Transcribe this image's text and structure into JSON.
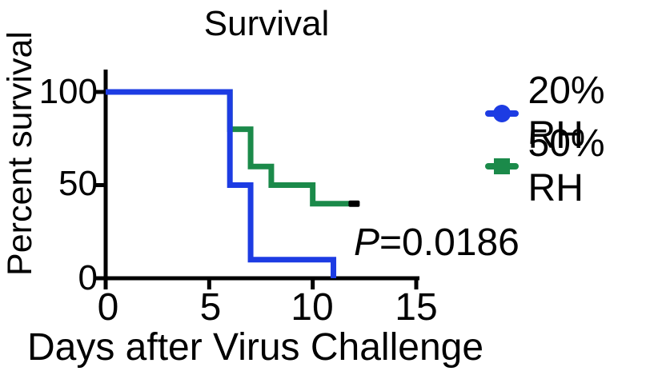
{
  "p_annotation": {
    "italic": "P",
    "rest": "=0.0186"
  },
  "chart_data": {
    "type": "line",
    "subtype": "kaplan_meier_survival_step",
    "title": "Survival",
    "xlabel": "Days after Virus Challenge",
    "ylabel": "Percent survival",
    "xlim": [
      0,
      15
    ],
    "ylim": [
      0,
      100
    ],
    "x_ticks": [
      0,
      5,
      10,
      15
    ],
    "y_ticks": [
      0,
      50,
      100
    ],
    "grid": false,
    "legend_position": "right-of-plot",
    "annotation": "P=0.0186",
    "colors": {
      "axis": "#000000",
      "text": "#000000",
      "background": "#ffffff"
    },
    "series": [
      {
        "name": "20% RH",
        "color": "#1d3ce3",
        "marker": "circle",
        "points": [
          [
            0,
            100
          ],
          [
            6,
            100
          ],
          [
            6,
            50
          ],
          [
            7,
            50
          ],
          [
            7,
            10
          ],
          [
            11,
            10
          ],
          [
            11,
            0
          ]
        ]
      },
      {
        "name": "50% RH",
        "color": "#1b8a4a",
        "marker": "square",
        "points": [
          [
            0,
            100
          ],
          [
            6,
            100
          ],
          [
            6,
            80
          ],
          [
            7,
            80
          ],
          [
            7,
            60
          ],
          [
            8,
            60
          ],
          [
            8,
            50
          ],
          [
            10,
            50
          ],
          [
            10,
            40
          ],
          [
            12,
            40
          ]
        ],
        "censored_marks": [
          [
            12,
            40
          ]
        ],
        "censored_color": "#000000"
      }
    ]
  }
}
